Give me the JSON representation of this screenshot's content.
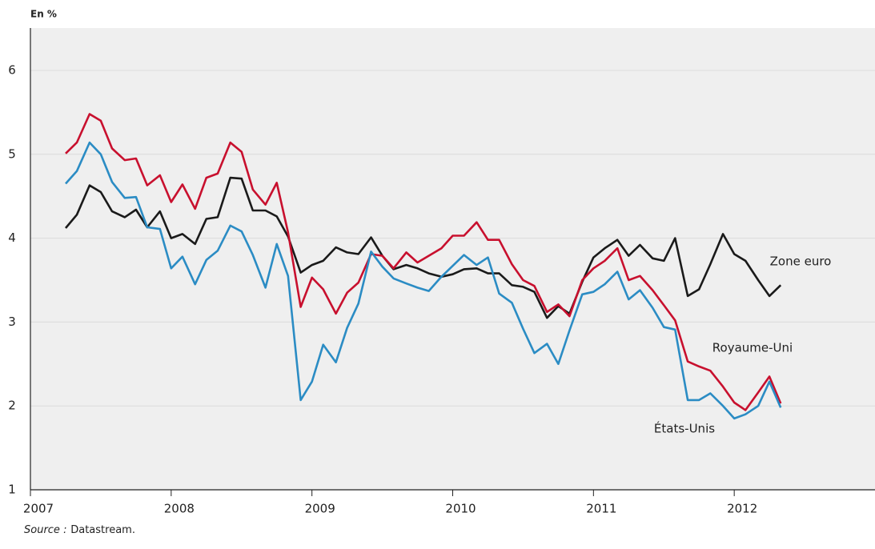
{
  "chart_data": {
    "type": "line",
    "y_label": "En %",
    "source_label": "Source :",
    "source": "Datastream.",
    "x": [
      2007.25,
      2007.33,
      2007.42,
      2007.5,
      2007.58,
      2007.67,
      2007.75,
      2007.83,
      2007.92,
      2008.0,
      2008.08,
      2008.17,
      2008.25,
      2008.33,
      2008.42,
      2008.5,
      2008.58,
      2008.67,
      2008.75,
      2008.83,
      2008.92,
      2009.0,
      2009.08,
      2009.17,
      2009.25,
      2009.33,
      2009.42,
      2009.5,
      2009.58,
      2009.67,
      2009.75,
      2009.83,
      2009.92,
      2010.0,
      2010.08,
      2010.17,
      2010.25,
      2010.33,
      2010.42,
      2010.5,
      2010.58,
      2010.67,
      2010.75,
      2010.83,
      2010.92,
      2011.0,
      2011.08,
      2011.17,
      2011.25,
      2011.33,
      2011.42,
      2011.5,
      2011.58,
      2011.67,
      2011.75,
      2011.83,
      2011.92,
      2012.0,
      2012.08,
      2012.17,
      2012.25,
      2012.33
    ],
    "series": [
      {
        "name": "Zone euro",
        "color": "#1a1a1a",
        "values": [
          4.12,
          4.28,
          4.63,
          4.55,
          4.32,
          4.25,
          4.34,
          4.13,
          4.32,
          4.0,
          4.05,
          3.93,
          4.23,
          4.25,
          4.72,
          4.71,
          4.33,
          4.33,
          4.26,
          4.02,
          3.59,
          3.68,
          3.73,
          3.89,
          3.83,
          3.81,
          4.01,
          3.79,
          3.63,
          3.68,
          3.64,
          3.58,
          3.54,
          3.57,
          3.63,
          3.64,
          3.58,
          3.58,
          3.44,
          3.42,
          3.36,
          3.05,
          3.19,
          3.1,
          3.48,
          3.77,
          3.88,
          3.98,
          3.79,
          3.92,
          3.76,
          3.73,
          4.0,
          3.31,
          3.39,
          3.69,
          4.05,
          3.81,
          3.73,
          3.5,
          3.31,
          3.44
        ]
      },
      {
        "name": "Royaume-Uni",
        "color": "#c8102e",
        "values": [
          5.01,
          5.14,
          5.48,
          5.4,
          5.07,
          4.93,
          4.95,
          4.63,
          4.75,
          4.43,
          4.64,
          4.35,
          4.72,
          4.77,
          5.14,
          5.03,
          4.58,
          4.4,
          4.66,
          4.07,
          3.18,
          3.53,
          3.39,
          3.1,
          3.35,
          3.47,
          3.81,
          3.79,
          3.64,
          3.83,
          3.71,
          3.79,
          3.88,
          4.03,
          4.03,
          4.19,
          3.98,
          3.98,
          3.69,
          3.5,
          3.43,
          3.12,
          3.21,
          3.07,
          3.5,
          3.64,
          3.73,
          3.88,
          3.5,
          3.55,
          3.38,
          3.2,
          3.02,
          2.53,
          2.47,
          2.42,
          2.23,
          2.04,
          1.95,
          2.16,
          2.35,
          2.03
        ]
      },
      {
        "name": "États-Unis",
        "color": "#2b8cc4",
        "values": [
          4.65,
          4.8,
          5.14,
          5.0,
          4.67,
          4.48,
          4.49,
          4.13,
          4.11,
          3.64,
          3.78,
          3.45,
          3.74,
          3.85,
          4.15,
          4.08,
          3.8,
          3.41,
          3.93,
          3.55,
          2.07,
          2.29,
          2.73,
          2.52,
          2.93,
          3.22,
          3.84,
          3.66,
          3.52,
          3.46,
          3.41,
          3.37,
          3.54,
          3.67,
          3.8,
          3.68,
          3.77,
          3.34,
          3.23,
          2.92,
          2.63,
          2.74,
          2.5,
          2.9,
          3.33,
          3.36,
          3.45,
          3.6,
          3.27,
          3.38,
          3.17,
          2.94,
          2.91,
          2.07,
          2.07,
          2.15,
          2.0,
          1.85,
          1.9,
          2.0,
          2.29,
          1.98
        ]
      }
    ],
    "xlim": [
      2007,
      2013
    ],
    "xticks": [
      2007,
      2008,
      2009,
      2010,
      2011,
      2012
    ],
    "ylim": [
      1,
      6.5
    ],
    "yticks": [
      1,
      2,
      3,
      4,
      5,
      6
    ],
    "grid": true
  }
}
